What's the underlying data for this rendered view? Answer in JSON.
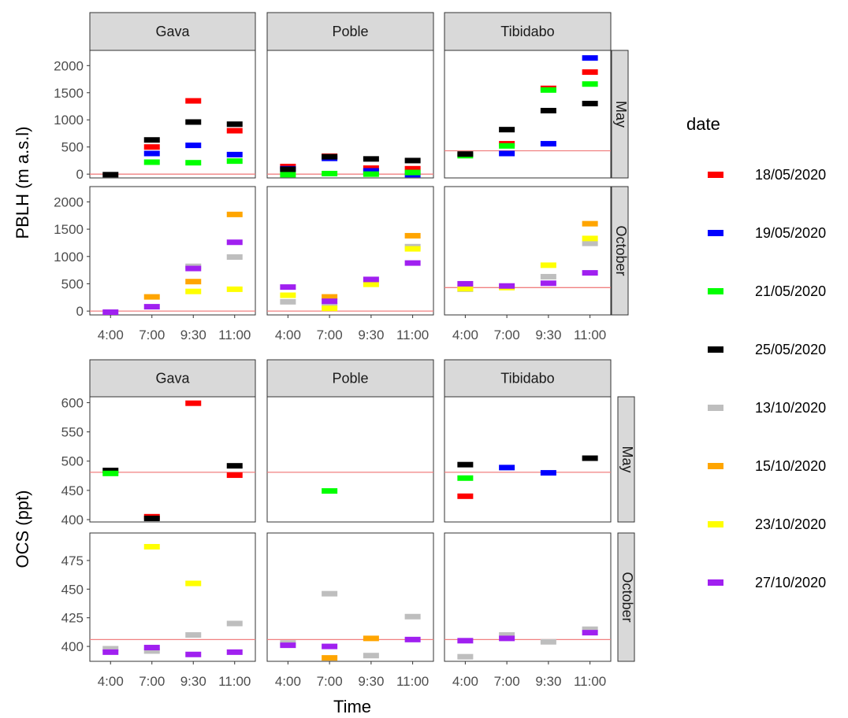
{
  "chart_data": [
    {
      "type": "scatter",
      "marker": "horizontal-dash",
      "facet_columns": [
        "Gava",
        "Poble",
        "Tibidabo"
      ],
      "facet_rows": [
        "May",
        "October"
      ],
      "categories": [
        "4:00",
        "7:00",
        "9:30",
        "11:00"
      ],
      "ylabel": "PBLH (m a.s.l)",
      "xlabel": "",
      "ylim": [
        -70,
        2280
      ],
      "yticks": [
        0,
        500,
        1000,
        1500,
        2000
      ],
      "reference_lines": {
        "Gava": {
          "May": 0,
          "October": 0
        },
        "Poble": {
          "May": 0,
          "October": 0
        },
        "Tibidabo": {
          "May": 430,
          "October": 430
        }
      },
      "panels": [
        {
          "column": "Gava",
          "row": "May",
          "points": [
            {
              "date": "25/05/2020",
              "x": "4:00",
              "y": -10
            },
            {
              "date": "18/05/2020",
              "x": "7:00",
              "y": 500
            },
            {
              "date": "19/05/2020",
              "x": "7:00",
              "y": 380
            },
            {
              "date": "21/05/2020",
              "x": "7:00",
              "y": 220
            },
            {
              "date": "25/05/2020",
              "x": "7:00",
              "y": 630
            },
            {
              "date": "18/05/2020",
              "x": "9:30",
              "y": 1350
            },
            {
              "date": "19/05/2020",
              "x": "9:30",
              "y": 530
            },
            {
              "date": "21/05/2020",
              "x": "9:30",
              "y": 210
            },
            {
              "date": "25/05/2020",
              "x": "9:30",
              "y": 960
            },
            {
              "date": "18/05/2020",
              "x": "11:00",
              "y": 800
            },
            {
              "date": "19/05/2020",
              "x": "11:00",
              "y": 360
            },
            {
              "date": "21/05/2020",
              "x": "11:00",
              "y": 240
            },
            {
              "date": "25/05/2020",
              "x": "11:00",
              "y": 920
            }
          ]
        },
        {
          "column": "Poble",
          "row": "May",
          "points": [
            {
              "date": "18/05/2020",
              "x": "4:00",
              "y": 140
            },
            {
              "date": "19/05/2020",
              "x": "4:00",
              "y": 100
            },
            {
              "date": "21/05/2020",
              "x": "4:00",
              "y": -10
            },
            {
              "date": "25/05/2020",
              "x": "4:00",
              "y": 90
            },
            {
              "date": "18/05/2020",
              "x": "7:00",
              "y": 330
            },
            {
              "date": "19/05/2020",
              "x": "7:00",
              "y": 290
            },
            {
              "date": "21/05/2020",
              "x": "7:00",
              "y": 10
            },
            {
              "date": "25/05/2020",
              "x": "7:00",
              "y": 320
            },
            {
              "date": "18/05/2020",
              "x": "9:30",
              "y": 110
            },
            {
              "date": "19/05/2020",
              "x": "9:30",
              "y": 60
            },
            {
              "date": "21/05/2020",
              "x": "9:30",
              "y": 0
            },
            {
              "date": "25/05/2020",
              "x": "9:30",
              "y": 280
            },
            {
              "date": "18/05/2020",
              "x": "11:00",
              "y": 100
            },
            {
              "date": "19/05/2020",
              "x": "11:00",
              "y": -10
            },
            {
              "date": "21/05/2020",
              "x": "11:00",
              "y": 30
            },
            {
              "date": "25/05/2020",
              "x": "11:00",
              "y": 250
            }
          ]
        },
        {
          "column": "Tibidabo",
          "row": "May",
          "points": [
            {
              "date": "21/05/2020",
              "x": "4:00",
              "y": 340
            },
            {
              "date": "25/05/2020",
              "x": "4:00",
              "y": 370
            },
            {
              "date": "18/05/2020",
              "x": "7:00",
              "y": 560
            },
            {
              "date": "19/05/2020",
              "x": "7:00",
              "y": 380
            },
            {
              "date": "21/05/2020",
              "x": "7:00",
              "y": 520
            },
            {
              "date": "25/05/2020",
              "x": "7:00",
              "y": 820
            },
            {
              "date": "18/05/2020",
              "x": "9:30",
              "y": 1580
            },
            {
              "date": "19/05/2020",
              "x": "9:30",
              "y": 560
            },
            {
              "date": "21/05/2020",
              "x": "9:30",
              "y": 1550
            },
            {
              "date": "25/05/2020",
              "x": "9:30",
              "y": 1170
            },
            {
              "date": "18/05/2020",
              "x": "11:00",
              "y": 1880
            },
            {
              "date": "19/05/2020",
              "x": "11:00",
              "y": 2140
            },
            {
              "date": "21/05/2020",
              "x": "11:00",
              "y": 1660
            },
            {
              "date": "25/05/2020",
              "x": "11:00",
              "y": 1300
            }
          ]
        },
        {
          "column": "Gava",
          "row": "October",
          "points": [
            {
              "date": "27/10/2020",
              "x": "4:00",
              "y": -20
            },
            {
              "date": "15/10/2020",
              "x": "7:00",
              "y": 260
            },
            {
              "date": "27/10/2020",
              "x": "7:00",
              "y": 80
            },
            {
              "date": "13/10/2020",
              "x": "9:30",
              "y": 820
            },
            {
              "date": "15/10/2020",
              "x": "9:30",
              "y": 540
            },
            {
              "date": "23/10/2020",
              "x": "9:30",
              "y": 360
            },
            {
              "date": "27/10/2020",
              "x": "9:30",
              "y": 780
            },
            {
              "date": "13/10/2020",
              "x": "11:00",
              "y": 990
            },
            {
              "date": "15/10/2020",
              "x": "11:00",
              "y": 1770
            },
            {
              "date": "23/10/2020",
              "x": "11:00",
              "y": 400
            },
            {
              "date": "27/10/2020",
              "x": "11:00",
              "y": 1260
            }
          ]
        },
        {
          "column": "Poble",
          "row": "October",
          "points": [
            {
              "date": "13/10/2020",
              "x": "4:00",
              "y": 170
            },
            {
              "date": "23/10/2020",
              "x": "4:00",
              "y": 290
            },
            {
              "date": "27/10/2020",
              "x": "4:00",
              "y": 440
            },
            {
              "date": "13/10/2020",
              "x": "7:00",
              "y": 100
            },
            {
              "date": "15/10/2020",
              "x": "7:00",
              "y": 260
            },
            {
              "date": "23/10/2020",
              "x": "7:00",
              "y": 50
            },
            {
              "date": "27/10/2020",
              "x": "7:00",
              "y": 180
            },
            {
              "date": "23/10/2020",
              "x": "9:30",
              "y": 490
            },
            {
              "date": "27/10/2020",
              "x": "9:30",
              "y": 580
            },
            {
              "date": "13/10/2020",
              "x": "11:00",
              "y": 1180
            },
            {
              "date": "15/10/2020",
              "x": "11:00",
              "y": 1380
            },
            {
              "date": "23/10/2020",
              "x": "11:00",
              "y": 1140
            },
            {
              "date": "27/10/2020",
              "x": "11:00",
              "y": 880
            }
          ]
        },
        {
          "column": "Tibidabo",
          "row": "October",
          "points": [
            {
              "date": "13/10/2020",
              "x": "4:00",
              "y": 400
            },
            {
              "date": "23/10/2020",
              "x": "4:00",
              "y": 410
            },
            {
              "date": "27/10/2020",
              "x": "4:00",
              "y": 500
            },
            {
              "date": "23/10/2020",
              "x": "7:00",
              "y": 430
            },
            {
              "date": "27/10/2020",
              "x": "7:00",
              "y": 460
            },
            {
              "date": "13/10/2020",
              "x": "9:30",
              "y": 630
            },
            {
              "date": "23/10/2020",
              "x": "9:30",
              "y": 840
            },
            {
              "date": "27/10/2020",
              "x": "9:30",
              "y": 510
            },
            {
              "date": "13/10/2020",
              "x": "11:00",
              "y": 1240
            },
            {
              "date": "15/10/2020",
              "x": "11:00",
              "y": 1600
            },
            {
              "date": "23/10/2020",
              "x": "11:00",
              "y": 1330
            },
            {
              "date": "27/10/2020",
              "x": "11:00",
              "y": 700
            }
          ]
        }
      ]
    },
    {
      "type": "scatter",
      "marker": "horizontal-dash",
      "facet_columns": [
        "Gava",
        "Poble",
        "Tibidabo"
      ],
      "facet_rows": [
        "May",
        "October"
      ],
      "categories": [
        "4:00",
        "7:00",
        "9:30",
        "11:00"
      ],
      "ylabel": "OCS (ppt)",
      "xlabel": "Time",
      "rows_ylim": {
        "May": [
          396,
          610
        ],
        "October": [
          387,
          499
        ]
      },
      "rows_yticks": {
        "May": [
          400,
          450,
          500,
          550,
          600
        ],
        "October": [
          400,
          425,
          450,
          475
        ]
      },
      "reference_lines": {
        "May": 481,
        "October": 406
      },
      "panels": [
        {
          "column": "Gava",
          "row": "May",
          "points": [
            {
              "date": "25/05/2020",
              "x": "4:00",
              "y": 484
            },
            {
              "date": "21/05/2020",
              "x": "4:00",
              "y": 479
            },
            {
              "date": "18/05/2020",
              "x": "7:00",
              "y": 405
            },
            {
              "date": "25/05/2020",
              "x": "7:00",
              "y": 402
            },
            {
              "date": "18/05/2020",
              "x": "9:30",
              "y": 599
            },
            {
              "date": "25/05/2020",
              "x": "11:00",
              "y": 492
            },
            {
              "date": "18/05/2020",
              "x": "11:00",
              "y": 476
            }
          ]
        },
        {
          "column": "Poble",
          "row": "May",
          "points": [
            {
              "date": "21/05/2020",
              "x": "7:00",
              "y": 449
            }
          ]
        },
        {
          "column": "Tibidabo",
          "row": "May",
          "points": [
            {
              "date": "25/05/2020",
              "x": "4:00",
              "y": 494
            },
            {
              "date": "21/05/2020",
              "x": "4:00",
              "y": 471
            },
            {
              "date": "18/05/2020",
              "x": "4:00",
              "y": 440
            },
            {
              "date": "19/05/2020",
              "x": "7:00",
              "y": 489
            },
            {
              "date": "19/05/2020",
              "x": "9:30",
              "y": 480
            },
            {
              "date": "25/05/2020",
              "x": "11:00",
              "y": 505
            }
          ]
        },
        {
          "column": "Gava",
          "row": "October",
          "points": [
            {
              "date": "13/10/2020",
              "x": "4:00",
              "y": 398
            },
            {
              "date": "27/10/2020",
              "x": "4:00",
              "y": 395
            },
            {
              "date": "23/10/2020",
              "x": "7:00",
              "y": 487
            },
            {
              "date": "13/10/2020",
              "x": "7:00",
              "y": 396
            },
            {
              "date": "27/10/2020",
              "x": "7:00",
              "y": 399
            },
            {
              "date": "23/10/2020",
              "x": "9:30",
              "y": 455
            },
            {
              "date": "13/10/2020",
              "x": "9:30",
              "y": 410
            },
            {
              "date": "27/10/2020",
              "x": "9:30",
              "y": 393
            },
            {
              "date": "13/10/2020",
              "x": "11:00",
              "y": 420
            },
            {
              "date": "27/10/2020",
              "x": "11:00",
              "y": 395
            }
          ]
        },
        {
          "column": "Poble",
          "row": "October",
          "points": [
            {
              "date": "13/10/2020",
              "x": "4:00",
              "y": 403
            },
            {
              "date": "27/10/2020",
              "x": "4:00",
              "y": 401
            },
            {
              "date": "13/10/2020",
              "x": "7:00",
              "y": 446
            },
            {
              "date": "27/10/2020",
              "x": "7:00",
              "y": 400
            },
            {
              "date": "15/10/2020",
              "x": "7:00",
              "y": 390
            },
            {
              "date": "15/10/2020",
              "x": "9:30",
              "y": 407
            },
            {
              "date": "13/10/2020",
              "x": "9:30",
              "y": 392
            },
            {
              "date": "13/10/2020",
              "x": "11:00",
              "y": 426
            },
            {
              "date": "27/10/2020",
              "x": "11:00",
              "y": 406
            }
          ]
        },
        {
          "column": "Tibidabo",
          "row": "October",
          "points": [
            {
              "date": "27/10/2020",
              "x": "4:00",
              "y": 405
            },
            {
              "date": "13/10/2020",
              "x": "4:00",
              "y": 391
            },
            {
              "date": "13/10/2020",
              "x": "7:00",
              "y": 410
            },
            {
              "date": "27/10/2020",
              "x": "7:00",
              "y": 407
            },
            {
              "date": "13/10/2020",
              "x": "9:30",
              "y": 404
            },
            {
              "date": "13/10/2020",
              "x": "11:00",
              "y": 415
            },
            {
              "date": "27/10/2020",
              "x": "11:00",
              "y": 412
            }
          ]
        }
      ]
    }
  ],
  "legend": {
    "title": "date",
    "placement": "right",
    "entries": [
      {
        "label": "18/05/2020",
        "color": "#ff0000"
      },
      {
        "label": "19/05/2020",
        "color": "#0000ff"
      },
      {
        "label": "21/05/2020",
        "color": "#00ff00"
      },
      {
        "label": "25/05/2020",
        "color": "#000000"
      },
      {
        "label": "13/10/2020",
        "color": "#bebebe"
      },
      {
        "label": "15/10/2020",
        "color": "#ffa500"
      },
      {
        "label": "23/10/2020",
        "color": "#ffff00"
      },
      {
        "label": "27/10/2020",
        "color": "#a020f0"
      }
    ]
  },
  "reference_line_color": "#f08080"
}
